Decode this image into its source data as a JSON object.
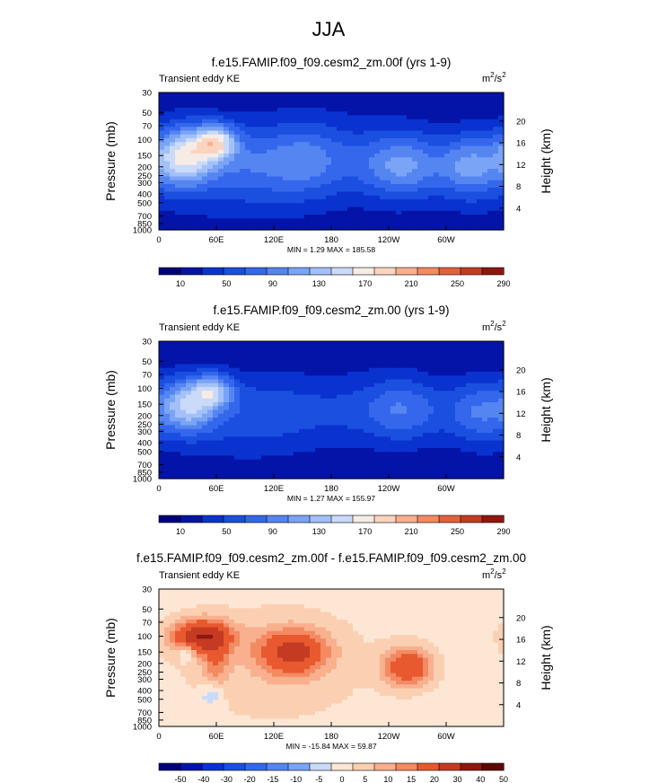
{
  "title": "JJA",
  "chart_data": [
    {
      "type": "heatmap",
      "title": "f.e15.FAMIP.f09_f09.cesm2_zm.00f (yrs 1-9)",
      "left_label": "Transient eddy KE",
      "units": {
        "base": "m",
        "sup1": "2",
        "mid": "/s",
        "sup2": "2"
      },
      "ylabel": "Pressure (mb)",
      "y2label": "Height (km)",
      "pressure_ticks": [
        "30",
        "50",
        "70",
        "100",
        "150",
        "200",
        "250",
        "300",
        "400",
        "500",
        "700",
        "850",
        "1000"
      ],
      "height_ticks": [
        "20",
        "16",
        "12",
        "8",
        "4"
      ],
      "x_ticks": [
        "0",
        "60E",
        "120E",
        "180",
        "120W",
        "60W"
      ],
      "stats": "MIN =   1.29  MAX = 185.58",
      "colorbar": "seq",
      "blobs": [
        {
          "lon": 25,
          "p": 150,
          "s": 22,
          "d": 0.55,
          "a": 130
        },
        {
          "lon": 60,
          "p": 105,
          "s": 15,
          "d": 0.32,
          "a": 120
        },
        {
          "lon": 95,
          "p": 180,
          "s": 45,
          "d": 0.8,
          "a": 40
        },
        {
          "lon": 155,
          "p": 160,
          "s": 28,
          "d": 0.7,
          "a": 35
        },
        {
          "lon": 255,
          "p": 200,
          "s": 28,
          "d": 0.6,
          "a": 70
        },
        {
          "lon": 325,
          "p": 200,
          "s": 22,
          "d": 0.6,
          "a": 75
        },
        {
          "lon": 200,
          "p": 160,
          "s": 60,
          "d": 0.9,
          "a": 25
        },
        {
          "lon": 60,
          "p": 320,
          "s": 80,
          "d": 0.9,
          "a": 15
        }
      ],
      "base": 12
    },
    {
      "type": "heatmap",
      "title": "f.e15.FAMIP.f09_f09.cesm2_zm.00 (yrs 1-9)",
      "left_label": "Transient eddy KE",
      "units": {
        "base": "m",
        "sup1": "2",
        "mid": "/s",
        "sup2": "2"
      },
      "ylabel": "Pressure (mb)",
      "y2label": "Height (km)",
      "pressure_ticks": [
        "30",
        "50",
        "70",
        "100",
        "150",
        "200",
        "250",
        "300",
        "400",
        "500",
        "700",
        "850",
        "1000"
      ],
      "height_ticks": [
        "20",
        "16",
        "12",
        "8",
        "4"
      ],
      "x_ticks": [
        "0",
        "60E",
        "120E",
        "180",
        "120W",
        "60W"
      ],
      "stats": "MIN =   1.27  MAX = 155.97",
      "colorbar": "seq",
      "blobs": [
        {
          "lon": 30,
          "p": 150,
          "s": 20,
          "d": 0.5,
          "a": 110
        },
        {
          "lon": 58,
          "p": 105,
          "s": 14,
          "d": 0.3,
          "a": 90
        },
        {
          "lon": 95,
          "p": 180,
          "s": 45,
          "d": 0.8,
          "a": 25
        },
        {
          "lon": 255,
          "p": 170,
          "s": 28,
          "d": 0.6,
          "a": 50
        },
        {
          "lon": 335,
          "p": 180,
          "s": 22,
          "d": 0.6,
          "a": 55
        },
        {
          "lon": 200,
          "p": 160,
          "s": 60,
          "d": 0.9,
          "a": 20
        },
        {
          "lon": 60,
          "p": 320,
          "s": 80,
          "d": 0.9,
          "a": 12
        }
      ],
      "base": 10
    },
    {
      "type": "heatmap",
      "title": "f.e15.FAMIP.f09_f09.cesm2_zm.00f - f.e15.FAMIP.f09_f09.cesm2_zm.00",
      "left_label": "Transient eddy KE",
      "units": {
        "base": "m",
        "sup1": "2",
        "mid": "/s",
        "sup2": "2"
      },
      "ylabel": "Pressure (mb)",
      "y2label": "Height (km)",
      "pressure_ticks": [
        "30",
        "50",
        "70",
        "100",
        "150",
        "200",
        "250",
        "300",
        "400",
        "500",
        "700",
        "850",
        "1000"
      ],
      "height_ticks": [
        "20",
        "16",
        "12",
        "8",
        "4"
      ],
      "x_ticks": [
        "0",
        "60E",
        "120E",
        "180",
        "120W",
        "60W"
      ],
      "stats": "MIN = -15.84  MAX =  59.87",
      "colorbar": "div",
      "blobs": [
        {
          "lon": 45,
          "p": 100,
          "s": 22,
          "d": 0.3,
          "a": 35
        },
        {
          "lon": 140,
          "p": 150,
          "s": 25,
          "d": 0.4,
          "a": 28
        },
        {
          "lon": 260,
          "p": 220,
          "s": 18,
          "d": 0.35,
          "a": 26
        },
        {
          "lon": 60,
          "p": 200,
          "s": 10,
          "d": 0.4,
          "a": 12
        },
        {
          "lon": 28,
          "p": 150,
          "s": 6,
          "d": 0.15,
          "a": -12
        },
        {
          "lon": 55,
          "p": 450,
          "s": 8,
          "d": 0.2,
          "a": -9
        },
        {
          "lon": 120,
          "p": 200,
          "s": 80,
          "d": 1.2,
          "a": 6
        }
      ],
      "base": 2
    }
  ],
  "colorbars": {
    "seq": {
      "labels": [
        "10",
        "50",
        "90",
        "130",
        "170",
        "210",
        "250",
        "290"
      ],
      "levels": [
        10,
        30,
        50,
        70,
        90,
        110,
        130,
        150,
        170,
        190,
        210,
        230,
        250,
        270,
        290
      ],
      "colors": [
        "#02007a",
        "#0414a8",
        "#0a32cf",
        "#1a4fe0",
        "#3467ec",
        "#5585f1",
        "#7aa4f5",
        "#a3c1f8",
        "#cadaf9",
        "#f6ece6",
        "#fbd4bf",
        "#f8b08f",
        "#f38a62",
        "#e3603e",
        "#c43a22",
        "#8f1710"
      ]
    },
    "div": {
      "labels": [
        "-50",
        "-40",
        "-30",
        "-20",
        "-15",
        "-10",
        "-5",
        "0",
        "5",
        "10",
        "15",
        "20",
        "30",
        "40",
        "50"
      ],
      "levels": [
        -50,
        -40,
        -30,
        -20,
        -15,
        -10,
        -5,
        0,
        5,
        10,
        15,
        20,
        30,
        40,
        50
      ],
      "colors": [
        "#02007a",
        "#0414a8",
        "#0a32cf",
        "#1a4fe0",
        "#3467ec",
        "#5585f1",
        "#7aa4f5",
        "#cadaf9",
        "#fde6d4",
        "#fbd0b2",
        "#f8b08f",
        "#f38a62",
        "#e8592f",
        "#c43a22",
        "#8f1710",
        "#5c0a05"
      ]
    }
  }
}
